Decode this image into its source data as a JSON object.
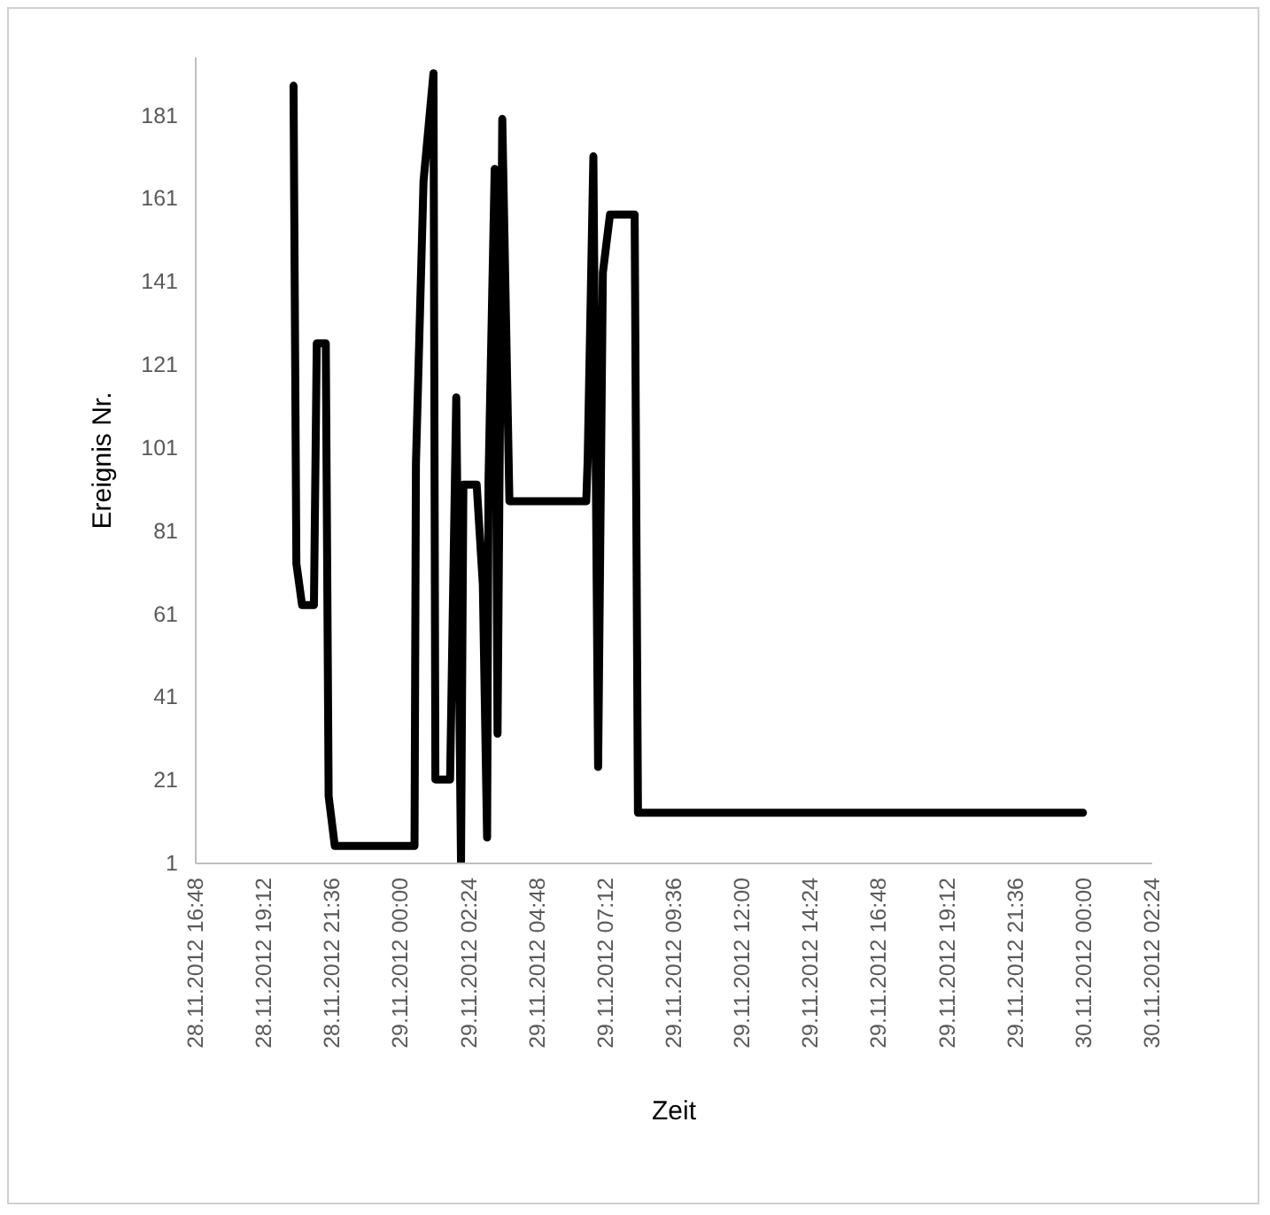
{
  "chart_data": {
    "type": "line",
    "xlabel": "Zeit",
    "ylabel": "Ereignis Nr.",
    "x": [
      "2012-11-28T20:16",
      "2012-11-28T20:22",
      "2012-11-28T20:34",
      "2012-11-28T20:59",
      "2012-11-28T21:05",
      "2012-11-28T21:24",
      "2012-11-28T21:30",
      "2012-11-28T21:43",
      "2012-11-29T00:31",
      "2012-11-29T00:34",
      "2012-11-29T00:50",
      "2012-11-29T01:11",
      "2012-11-29T01:15",
      "2012-11-29T01:46",
      "2012-11-29T01:59",
      "2012-11-29T02:09",
      "2012-11-29T02:14",
      "2012-11-29T02:42",
      "2012-11-29T02:55",
      "2012-11-29T03:04",
      "2012-11-29T03:07",
      "2012-11-29T03:20",
      "2012-11-29T03:26",
      "2012-11-29T03:36",
      "2012-11-29T03:51",
      "2012-11-29T06:33",
      "2012-11-29T06:36",
      "2012-11-29T06:48",
      "2012-11-29T06:58",
      "2012-11-29T07:08",
      "2012-11-29T07:23",
      "2012-11-29T08:15",
      "2012-11-29T08:22",
      "2012-11-30T00:00"
    ],
    "series": [
      {
        "color": "#000000",
        "values": [
          188,
          73,
          63,
          63,
          126,
          126,
          17,
          5,
          5,
          97,
          165,
          191,
          21,
          21,
          113,
          1,
          92,
          92,
          68,
          7,
          93,
          168,
          32,
          180,
          88,
          88,
          98,
          171,
          24,
          143,
          157,
          157,
          13,
          13
        ]
      }
    ],
    "xlim": [
      "2012-11-28T16:48",
      "2012-11-30T02:24"
    ],
    "xticks": [
      {
        "value": "2012-11-28T16:48",
        "label": "28.11.2012 16:48"
      },
      {
        "value": "2012-11-28T19:12",
        "label": "28.11.2012 19:12"
      },
      {
        "value": "2012-11-28T21:36",
        "label": "28.11.2012 21:36"
      },
      {
        "value": "2012-11-29T00:00",
        "label": "29.11.2012 00:00"
      },
      {
        "value": "2012-11-29T02:24",
        "label": "29.11.2012 02:24"
      },
      {
        "value": "2012-11-29T04:48",
        "label": "29.11.2012 04:48"
      },
      {
        "value": "2012-11-29T07:12",
        "label": "29.11.2012 07:12"
      },
      {
        "value": "2012-11-29T09:36",
        "label": "29.11.2012 09:36"
      },
      {
        "value": "2012-11-29T12:00",
        "label": "29.11.2012 12:00"
      },
      {
        "value": "2012-11-29T14:24",
        "label": "29.11.2012 14:24"
      },
      {
        "value": "2012-11-29T16:48",
        "label": "29.11.2012 16:48"
      },
      {
        "value": "2012-11-29T19:12",
        "label": "29.11.2012 19:12"
      },
      {
        "value": "2012-11-29T21:36",
        "label": "29.11.2012 21:36"
      },
      {
        "value": "2012-11-30T00:00",
        "label": "30.11.2012 00:00"
      },
      {
        "value": "2012-11-30T02:24",
        "label": "30.11.2012 02:24"
      }
    ],
    "ylim": [
      1,
      195
    ],
    "yticks": [
      1,
      21,
      41,
      61,
      81,
      101,
      121,
      141,
      161,
      181
    ],
    "grid": false,
    "marker": "none",
    "line_style": "solid"
  }
}
